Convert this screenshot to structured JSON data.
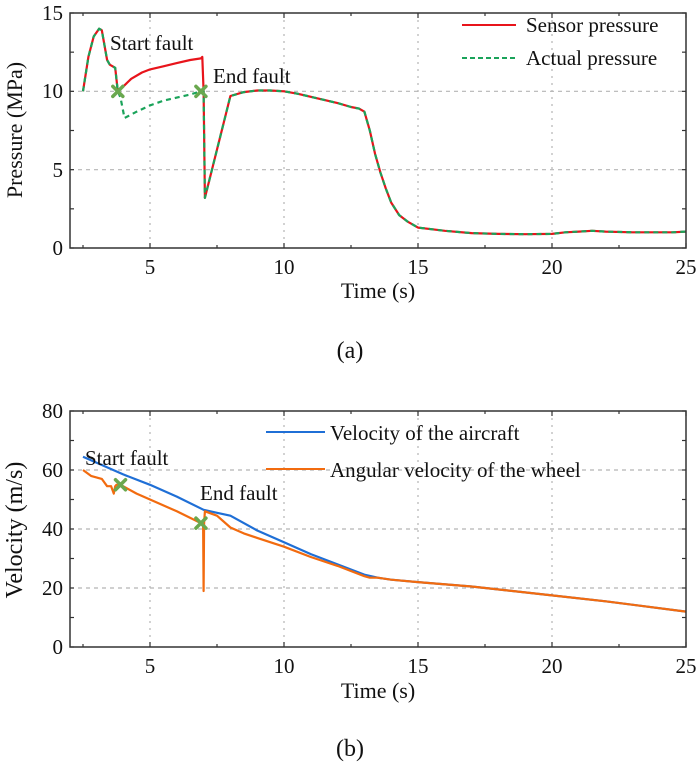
{
  "chart_data": [
    {
      "type": "line",
      "panel": "(a)",
      "xlabel": "Time (s)",
      "ylabel": "Pressure (MPa)",
      "xlim": [
        2,
        25
      ],
      "ylim": [
        0,
        15
      ],
      "xticks": [
        5,
        10,
        15,
        20,
        25
      ],
      "yticks": [
        0,
        5,
        10,
        15
      ],
      "grid": true,
      "legend_position": "top-right",
      "series": [
        {
          "name": "Sensor pressure",
          "color": "#e8141b",
          "style": "solid",
          "x": [
            2.5,
            2.7,
            2.9,
            3.1,
            3.2,
            3.4,
            3.5,
            3.7,
            3.8,
            3.8,
            4.0,
            4.3,
            4.7,
            5.0,
            5.5,
            6.0,
            6.5,
            6.9,
            6.95,
            7.0,
            7.05,
            8.0,
            8.5,
            9.0,
            9.5,
            10.0,
            10.5,
            11.0,
            11.5,
            12.0,
            12.5,
            12.8,
            13.0,
            13.2,
            13.4,
            13.6,
            13.8,
            14.0,
            14.3,
            14.6,
            15.0,
            15.5,
            16.0,
            17.0,
            18.0,
            19.0,
            20.0,
            20.5,
            21.0,
            21.5,
            22.0,
            23.0,
            24.0,
            24.5,
            25.0
          ],
          "y": [
            10.0,
            12.2,
            13.5,
            14.0,
            13.9,
            12.0,
            11.7,
            11.5,
            10.0,
            10.0,
            10.3,
            10.8,
            11.2,
            11.4,
            11.6,
            11.8,
            12.0,
            12.1,
            12.2,
            10.0,
            3.2,
            9.7,
            9.95,
            10.05,
            10.05,
            10.0,
            9.85,
            9.65,
            9.45,
            9.25,
            9.0,
            8.9,
            8.7,
            7.5,
            6.0,
            4.8,
            3.8,
            2.9,
            2.1,
            1.7,
            1.3,
            1.2,
            1.1,
            0.95,
            0.9,
            0.88,
            0.9,
            1.0,
            1.05,
            1.1,
            1.05,
            1.0,
            1.0,
            1.0,
            1.05
          ]
        },
        {
          "name": "Actual pressure",
          "color": "#1aa35a",
          "style": "dashed",
          "x": [
            2.5,
            2.7,
            2.9,
            3.1,
            3.2,
            3.4,
            3.5,
            3.7,
            3.8,
            3.8,
            3.9,
            4.05,
            4.5,
            5.0,
            5.5,
            6.0,
            6.5,
            6.9,
            7.0,
            7.05,
            8.0,
            8.5,
            9.0,
            9.5,
            10.0,
            10.5,
            11.0,
            11.5,
            12.0,
            12.5,
            12.8,
            13.0,
            13.2,
            13.4,
            13.6,
            13.8,
            14.0,
            14.3,
            14.6,
            15.0,
            15.5,
            16.0,
            17.0,
            18.0,
            19.0,
            20.0,
            20.5,
            21.0,
            21.5,
            22.0,
            23.0,
            24.0,
            24.5,
            25.0
          ],
          "y": [
            10.0,
            12.2,
            13.5,
            14.0,
            13.9,
            12.0,
            11.7,
            11.5,
            10.0,
            10.0,
            9.6,
            8.3,
            8.7,
            9.1,
            9.4,
            9.6,
            9.8,
            10.0,
            10.0,
            3.2,
            9.7,
            9.95,
            10.05,
            10.05,
            10.0,
            9.85,
            9.65,
            9.45,
            9.25,
            9.0,
            8.9,
            8.7,
            7.5,
            6.0,
            4.8,
            3.8,
            2.9,
            2.1,
            1.7,
            1.3,
            1.2,
            1.1,
            0.95,
            0.9,
            0.88,
            0.9,
            1.0,
            1.05,
            1.1,
            1.05,
            1.0,
            1.0,
            1.0,
            1.05
          ]
        }
      ],
      "markers": [
        {
          "label": "Start fault",
          "x": 3.8,
          "y": 10.0,
          "color": "#6aa84f"
        },
        {
          "label": "End fault",
          "x": 6.9,
          "y": 10.0,
          "color": "#6aa84f"
        }
      ],
      "annotations": [
        "Start fault",
        "End fault"
      ]
    },
    {
      "type": "line",
      "panel": "(b)",
      "xlabel": "Time (s)",
      "ylabel": "Velocity (m/s)",
      "xlim": [
        2,
        25
      ],
      "ylim": [
        0,
        80
      ],
      "xticks": [
        5,
        10,
        15,
        20,
        25
      ],
      "yticks": [
        0,
        20,
        40,
        60,
        80
      ],
      "grid": true,
      "legend_position": "top-right",
      "series": [
        {
          "name": "Velocity of the aircraft",
          "color": "#1f6fd6",
          "style": "solid",
          "x": [
            2.5,
            4.0,
            5.0,
            6.0,
            7.0,
            7.5,
            8.0,
            9.0,
            10.0,
            11.0,
            12.0,
            13.0,
            13.5,
            14.0,
            15.0,
            17.0,
            20.0,
            22.0,
            25.0
          ],
          "y": [
            64.5,
            58.5,
            55.0,
            51.0,
            46.5,
            45.5,
            44.5,
            39.5,
            35.5,
            31.5,
            28.0,
            24.5,
            23.5,
            22.8,
            22.0,
            20.5,
            17.5,
            15.5,
            12.0
          ]
        },
        {
          "name": "Angular velocity of the wheel",
          "color": "#f26b0f",
          "style": "solid",
          "x": [
            2.5,
            2.8,
            3.2,
            3.4,
            3.55,
            3.65,
            3.7,
            3.75,
            3.9,
            4.5,
            5.0,
            6.0,
            6.9,
            6.98,
            7.0,
            7.02,
            7.05,
            7.5,
            8.0,
            8.5,
            9.0,
            10.0,
            11.0,
            12.0,
            13.0,
            13.2,
            13.5,
            14.0,
            15.0,
            17.0,
            20.0,
            22.0,
            25.0
          ],
          "y": [
            60.0,
            58.0,
            57.0,
            54.5,
            54.5,
            52.0,
            54.5,
            55.0,
            55.0,
            52.0,
            50.0,
            46.0,
            42.0,
            42.0,
            19.0,
            42.0,
            46.0,
            44.5,
            40.5,
            38.5,
            37.0,
            34.0,
            30.5,
            27.5,
            24.0,
            23.5,
            23.5,
            22.8,
            22.0,
            20.5,
            17.5,
            15.5,
            12.0
          ]
        }
      ],
      "markers": [
        {
          "label": "Start fault",
          "x": 3.9,
          "y": 55.0,
          "color": "#6aa84f"
        },
        {
          "label": "End fault",
          "x": 6.9,
          "y": 42.0,
          "color": "#6aa84f"
        }
      ],
      "annotations": [
        "Start fault",
        "End fault"
      ]
    }
  ],
  "panels": {
    "a": {
      "caption": "(a)",
      "xlabel": "Time (s)",
      "ylabel": "Pressure (MPa)",
      "start_label": "Start fault",
      "end_label": "End fault",
      "legend": [
        "Sensor pressure",
        "Actual pressure"
      ],
      "xticks": [
        "5",
        "10",
        "15",
        "20",
        "25"
      ],
      "yticks": [
        "0",
        "5",
        "10",
        "15"
      ]
    },
    "b": {
      "caption": "(b)",
      "xlabel": "Time (s)",
      "ylabel": "Velocity (m/s)",
      "start_label": "Start fault",
      "end_label": "End fault",
      "legend": [
        "Velocity of the aircraft",
        "Angular velocity of the wheel"
      ],
      "xticks": [
        "5",
        "10",
        "15",
        "20",
        "25"
      ],
      "yticks": [
        "0",
        "20",
        "40",
        "60",
        "80"
      ]
    }
  }
}
